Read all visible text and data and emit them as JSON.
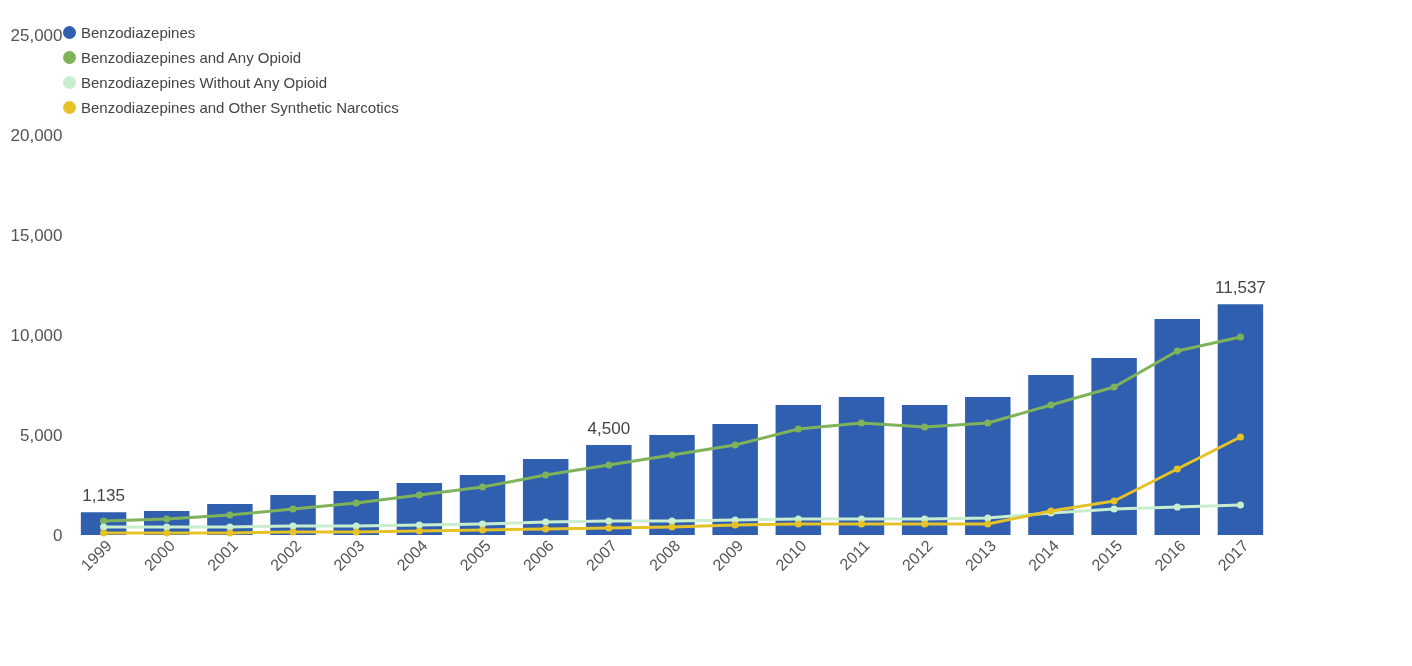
{
  "chart_data": {
    "type": "bar",
    "categories": [
      "1999",
      "2000",
      "2001",
      "2002",
      "2003",
      "2004",
      "2005",
      "2006",
      "2007",
      "2008",
      "2009",
      "2010",
      "2011",
      "2012",
      "2013",
      "2014",
      "2015",
      "2016",
      "2017"
    ],
    "ylim": [
      0,
      25000
    ],
    "yticks": [
      {
        "value": 0,
        "label": "0"
      },
      {
        "value": 5000,
        "label": "5,000"
      },
      {
        "value": 10000,
        "label": "10,000"
      },
      {
        "value": 15000,
        "label": "15,000"
      },
      {
        "value": 20000,
        "label": "20,000"
      },
      {
        "value": 25000,
        "label": "25,000"
      }
    ],
    "legend": "top left",
    "marker": "circle",
    "grid": false,
    "series": [
      {
        "name": "Benzodiazepines",
        "color": "#2f5fae",
        "values": [
          1135,
          1200,
          1550,
          2000,
          2200,
          2600,
          3000,
          3800,
          4500,
          5000,
          5550,
          6500,
          6900,
          6500,
          6900,
          8000,
          8850,
          10800,
          11537
        ],
        "value_labels": [
          "1,135",
          null,
          null,
          null,
          null,
          null,
          null,
          null,
          "4,500",
          null,
          null,
          null,
          null,
          null,
          null,
          null,
          null,
          null,
          "11,537"
        ]
      },
      {
        "name": "Benzodiazepines and Any Opioid",
        "type": "line",
        "color": "#7fb35a",
        "values": [
          700,
          800,
          1000,
          1300,
          1600,
          2000,
          2400,
          3000,
          3500,
          4000,
          4500,
          5300,
          5600,
          5400,
          5600,
          6500,
          7400,
          9200,
          9900
        ]
      },
      {
        "name": "Benzodiazepines Without Any Opioid",
        "type": "line",
        "color": "#c9eecf",
        "values": [
          400,
          400,
          400,
          450,
          450,
          500,
          550,
          650,
          700,
          700,
          750,
          800,
          800,
          800,
          850,
          1100,
          1300,
          1400,
          1500
        ]
      },
      {
        "name": "Benzodiazepines and Other Synthetic Narcotics",
        "type": "line",
        "color": "#e6c229",
        "values": [
          100,
          100,
          100,
          150,
          150,
          200,
          250,
          300,
          350,
          400,
          500,
          550,
          550,
          550,
          550,
          1200,
          1700,
          3300,
          4900
        ]
      }
    ]
  }
}
